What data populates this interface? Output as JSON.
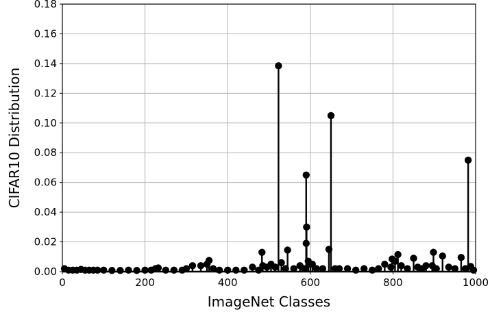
{
  "chart_data": {
    "type": "stem",
    "xlabel": "ImageNet Classes",
    "ylabel": "CIFAR10 Distribution",
    "xlim": [
      0,
      1000
    ],
    "ylim": [
      0,
      0.18
    ],
    "x_ticks": [
      "0",
      "200",
      "400",
      "600",
      "800",
      "1000"
    ],
    "y_ticks": [
      "0.00",
      "0.02",
      "0.04",
      "0.06",
      "0.08",
      "0.10",
      "0.12",
      "0.14",
      "0.16",
      "0.18"
    ],
    "grid": true,
    "color": "#000000",
    "points": [
      {
        "x": 5,
        "y": 0.002
      },
      {
        "x": 15,
        "y": 0.001
      },
      {
        "x": 25,
        "y": 0.001
      },
      {
        "x": 35,
        "y": 0.001
      },
      {
        "x": 45,
        "y": 0.0015
      },
      {
        "x": 55,
        "y": 0.001
      },
      {
        "x": 65,
        "y": 0.001
      },
      {
        "x": 75,
        "y": 0.001
      },
      {
        "x": 85,
        "y": 0.001
      },
      {
        "x": 100,
        "y": 0.001
      },
      {
        "x": 120,
        "y": 0.0008
      },
      {
        "x": 140,
        "y": 0.0008
      },
      {
        "x": 160,
        "y": 0.001
      },
      {
        "x": 180,
        "y": 0.0008
      },
      {
        "x": 200,
        "y": 0.001
      },
      {
        "x": 215,
        "y": 0.001
      },
      {
        "x": 225,
        "y": 0.002
      },
      {
        "x": 232,
        "y": 0.0025
      },
      {
        "x": 250,
        "y": 0.001
      },
      {
        "x": 270,
        "y": 0.001
      },
      {
        "x": 290,
        "y": 0.001
      },
      {
        "x": 300,
        "y": 0.002
      },
      {
        "x": 315,
        "y": 0.004
      },
      {
        "x": 335,
        "y": 0.004
      },
      {
        "x": 350,
        "y": 0.005
      },
      {
        "x": 355,
        "y": 0.0075
      },
      {
        "x": 365,
        "y": 0.002
      },
      {
        "x": 380,
        "y": 0.001
      },
      {
        "x": 400,
        "y": 0.001
      },
      {
        "x": 420,
        "y": 0.001
      },
      {
        "x": 440,
        "y": 0.001
      },
      {
        "x": 460,
        "y": 0.003
      },
      {
        "x": 475,
        "y": 0.001
      },
      {
        "x": 483,
        "y": 0.013
      },
      {
        "x": 485,
        "y": 0.004
      },
      {
        "x": 495,
        "y": 0.003
      },
      {
        "x": 505,
        "y": 0.005
      },
      {
        "x": 515,
        "y": 0.003
      },
      {
        "x": 523,
        "y": 0.1385
      },
      {
        "x": 530,
        "y": 0.006
      },
      {
        "x": 540,
        "y": 0.002
      },
      {
        "x": 545,
        "y": 0.0145
      },
      {
        "x": 560,
        "y": 0.002
      },
      {
        "x": 575,
        "y": 0.004
      },
      {
        "x": 585,
        "y": 0.002
      },
      {
        "x": 590,
        "y": 0.065
      },
      {
        "x": 590,
        "y": 0.019
      },
      {
        "x": 591,
        "y": 0.03
      },
      {
        "x": 595,
        "y": 0.007
      },
      {
        "x": 600,
        "y": 0.005
      },
      {
        "x": 605,
        "y": 0.005
      },
      {
        "x": 615,
        "y": 0.002
      },
      {
        "x": 630,
        "y": 0.002
      },
      {
        "x": 645,
        "y": 0.015
      },
      {
        "x": 650,
        "y": 0.105
      },
      {
        "x": 660,
        "y": 0.002
      },
      {
        "x": 670,
        "y": 0.002
      },
      {
        "x": 690,
        "y": 0.002
      },
      {
        "x": 710,
        "y": 0.001
      },
      {
        "x": 730,
        "y": 0.002
      },
      {
        "x": 750,
        "y": 0.001
      },
      {
        "x": 765,
        "y": 0.002
      },
      {
        "x": 780,
        "y": 0.005
      },
      {
        "x": 795,
        "y": 0.003
      },
      {
        "x": 798,
        "y": 0.0085
      },
      {
        "x": 805,
        "y": 0.007
      },
      {
        "x": 812,
        "y": 0.0115
      },
      {
        "x": 820,
        "y": 0.004
      },
      {
        "x": 835,
        "y": 0.002
      },
      {
        "x": 850,
        "y": 0.009
      },
      {
        "x": 860,
        "y": 0.003
      },
      {
        "x": 870,
        "y": 0.002
      },
      {
        "x": 880,
        "y": 0.004
      },
      {
        "x": 895,
        "y": 0.004
      },
      {
        "x": 898,
        "y": 0.013
      },
      {
        "x": 905,
        "y": 0.002
      },
      {
        "x": 920,
        "y": 0.0105
      },
      {
        "x": 935,
        "y": 0.003
      },
      {
        "x": 950,
        "y": 0.002
      },
      {
        "x": 965,
        "y": 0.0095
      },
      {
        "x": 975,
        "y": 0.002
      },
      {
        "x": 982,
        "y": 0.075
      },
      {
        "x": 988,
        "y": 0.0035
      },
      {
        "x": 995,
        "y": 0.001
      }
    ]
  }
}
